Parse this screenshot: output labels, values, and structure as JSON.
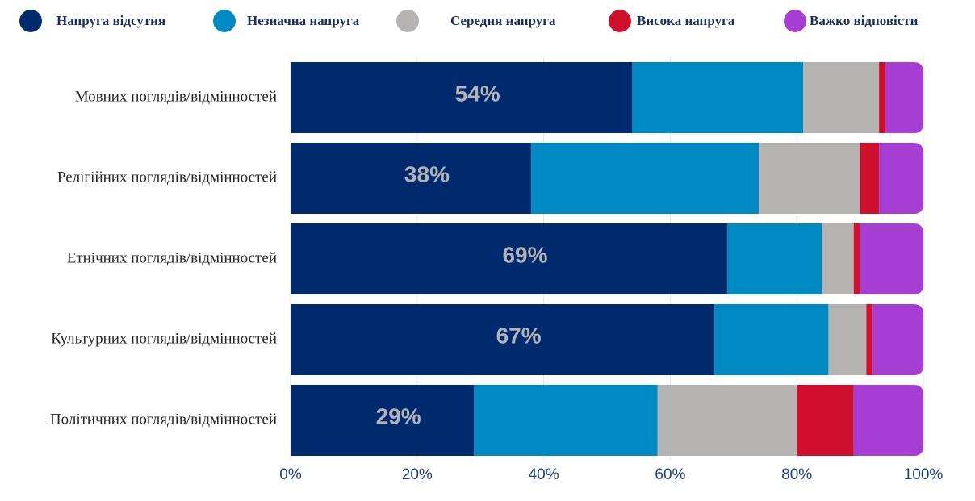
{
  "chart_data": {
    "type": "stacked_barh",
    "categories": [
      "Мовних поглядів/відмінностей",
      "Релігійних поглядів/відмінностей",
      "Етнічних поглядів/відмінностей",
      "Культурних поглядів/відмінностей",
      "Політичних поглядів/відмінностей"
    ],
    "series": [
      {
        "name": "Напруга відсутня",
        "color": "#002a6e",
        "values": [
          54,
          38,
          69,
          67,
          29
        ],
        "value_labels": [
          "54%",
          "38%",
          "69%",
          "67%",
          "29%"
        ]
      },
      {
        "name": "Незначна напруга",
        "color": "#008ac4",
        "values": [
          27,
          36,
          15,
          18,
          29
        ]
      },
      {
        "name": "Середня напруга",
        "color": "#b5b4b2",
        "values": [
          12,
          16,
          5,
          6,
          22
        ]
      },
      {
        "name": "Висока напруга",
        "color": "#cf0f2b",
        "values": [
          1,
          3,
          1,
          1,
          9
        ]
      },
      {
        "name": "Важко відповісти",
        "color": "#a63ed4",
        "values": [
          6,
          7,
          10,
          8,
          11
        ]
      }
    ],
    "xlim": [
      0,
      100
    ],
    "xticks": [
      {
        "value": 0,
        "label": "0%"
      },
      {
        "value": 20,
        "label": "20%"
      },
      {
        "value": 40,
        "label": "40%"
      },
      {
        "value": 60,
        "label": "60%"
      },
      {
        "value": 80,
        "label": "80%"
      },
      {
        "value": 100,
        "label": "100%"
      }
    ],
    "grid": true,
    "legend": "top"
  }
}
